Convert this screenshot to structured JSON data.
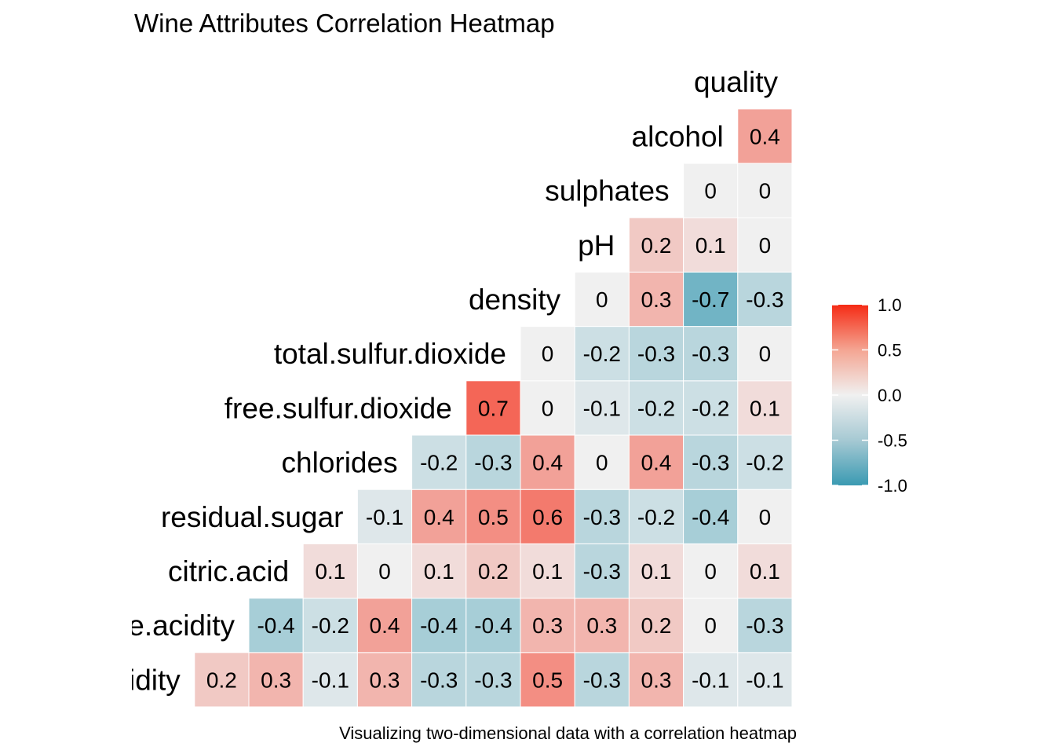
{
  "chart_data": {
    "type": "heatmap",
    "title": "Wine Attributes Correlation Heatmap",
    "caption": "Visualizing two-dimensional data with a correlation heatmap",
    "row_labels": [
      "idity",
      "le.acidity",
      "citric.acid",
      "residual.sugar",
      "chlorides",
      "free.sulfur.dioxide",
      "total.sulfur.dioxide",
      "density",
      "pH",
      "sulphates",
      "alcohol",
      "quality"
    ],
    "rows": [
      {
        "label": "idity",
        "values": [
          "0.2",
          "0.3",
          "-0.1",
          "0.3",
          "-0.3",
          "-0.3",
          "0.5",
          "-0.3",
          "0.3",
          "-0.1",
          "-0.1"
        ]
      },
      {
        "label": "le.acidity",
        "values": [
          "-0.4",
          "-0.2",
          "0.4",
          "-0.4",
          "-0.4",
          "0.3",
          "0.3",
          "0.2",
          "0",
          "-0.3"
        ]
      },
      {
        "label": "citric.acid",
        "values": [
          "0.1",
          "0",
          "0.1",
          "0.2",
          "0.1",
          "-0.3",
          "0.1",
          "0",
          "0.1"
        ]
      },
      {
        "label": "residual.sugar",
        "values": [
          "-0.1",
          "0.4",
          "0.5",
          "0.6",
          "-0.3",
          "-0.2",
          "-0.4",
          "0"
        ]
      },
      {
        "label": "chlorides",
        "values": [
          "-0.2",
          "-0.3",
          "0.4",
          "0",
          "0.4",
          "-0.3",
          "-0.2"
        ]
      },
      {
        "label": "free.sulfur.dioxide",
        "values": [
          "0.7",
          "0",
          "-0.1",
          "-0.2",
          "-0.2",
          "0.1"
        ]
      },
      {
        "label": "total.sulfur.dioxide",
        "values": [
          "0",
          "-0.2",
          "-0.3",
          "-0.3",
          "0"
        ]
      },
      {
        "label": "density",
        "values": [
          "0",
          "0.3",
          "-0.7",
          "-0.3"
        ]
      },
      {
        "label": "pH",
        "values": [
          "0.2",
          "0.1",
          "0"
        ]
      },
      {
        "label": "sulphates",
        "values": [
          "0",
          "0"
        ]
      },
      {
        "label": "alcohol",
        "values": [
          "0.4"
        ]
      },
      {
        "label": "quality",
        "values": []
      }
    ],
    "color_scale": {
      "low": "#3A9AB2",
      "mid": "#F0F0F0",
      "high": "#F52B15",
      "limits": [
        -1.0,
        1.0
      ],
      "tick_labels": [
        "1.0",
        "0.5",
        "0.0",
        "-0.5",
        "-1.0"
      ],
      "tick_values": [
        1.0,
        0.5,
        0.0,
        -0.5,
        -1.0
      ]
    },
    "legend_position": "right"
  }
}
